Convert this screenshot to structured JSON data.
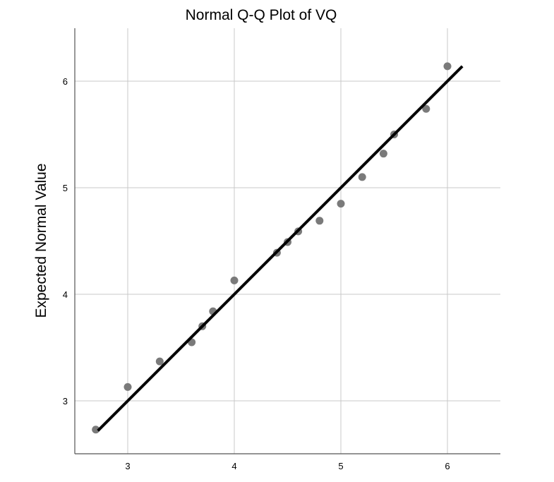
{
  "chart_data": {
    "type": "scatter",
    "title": "Normal Q-Q Plot of VQ",
    "xlabel": "",
    "ylabel": "Expected Normal Value",
    "xlim": [
      2.5,
      6.5
    ],
    "ylim": [
      2.5,
      6.5
    ],
    "x_ticks": [
      3,
      4,
      5,
      6
    ],
    "y_ticks": [
      3,
      4,
      5,
      6
    ],
    "grid": true,
    "points": [
      {
        "x": 2.7,
        "y": 2.73
      },
      {
        "x": 3.0,
        "y": 3.13
      },
      {
        "x": 3.3,
        "y": 3.37
      },
      {
        "x": 3.6,
        "y": 3.55
      },
      {
        "x": 3.7,
        "y": 3.7
      },
      {
        "x": 3.8,
        "y": 3.84
      },
      {
        "x": 4.0,
        "y": 4.13
      },
      {
        "x": 4.4,
        "y": 4.39
      },
      {
        "x": 4.5,
        "y": 4.49
      },
      {
        "x": 4.6,
        "y": 4.59
      },
      {
        "x": 4.8,
        "y": 4.69
      },
      {
        "x": 5.0,
        "y": 4.85
      },
      {
        "x": 5.2,
        "y": 5.1
      },
      {
        "x": 5.4,
        "y": 5.32
      },
      {
        "x": 5.5,
        "y": 5.5
      },
      {
        "x": 5.8,
        "y": 5.74
      },
      {
        "x": 6.0,
        "y": 6.14
      }
    ],
    "reference_line": {
      "x_start": 2.72,
      "x_end": 6.14
    },
    "colors": {
      "points": "#7a7a7a",
      "line": "#000000",
      "grid": "#c8c8c8",
      "axis": "#555555"
    }
  }
}
